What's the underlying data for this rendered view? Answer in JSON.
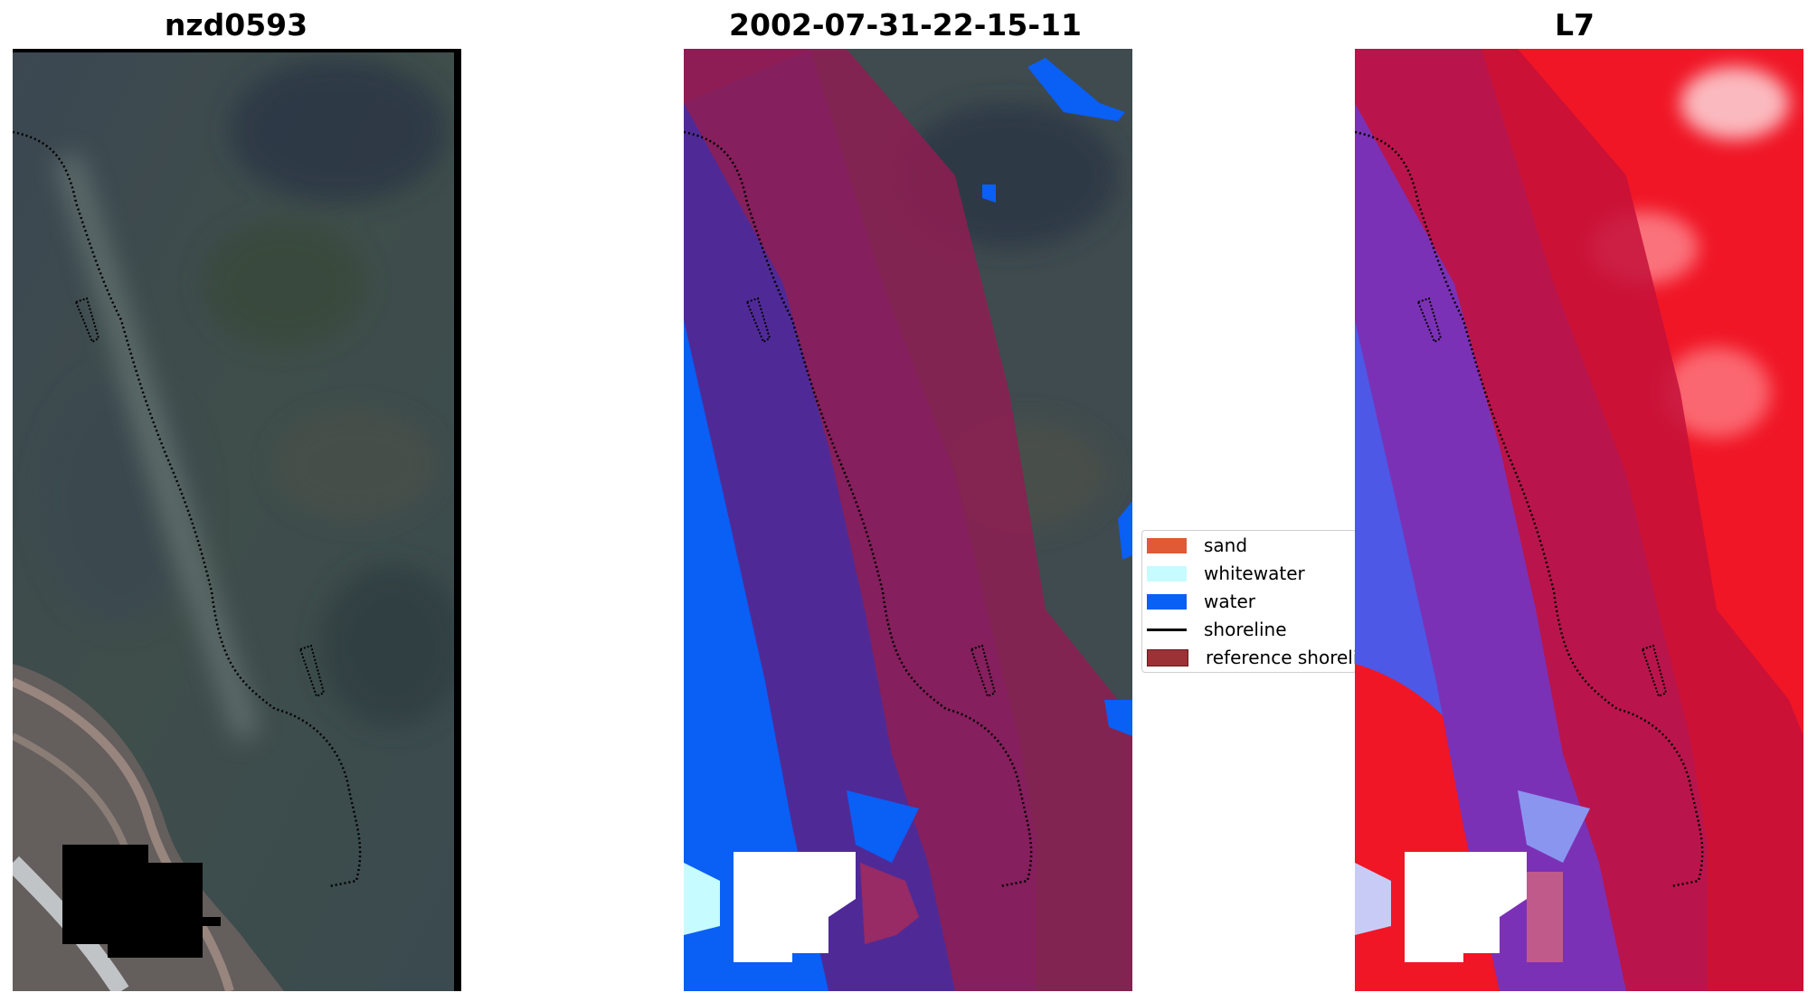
{
  "panels": [
    {
      "title": "nzd0593"
    },
    {
      "title": "2002-07-31-22-15-11"
    },
    {
      "title": "L7"
    }
  ],
  "legend": {
    "items": [
      {
        "label": "sand",
        "kind": "patch",
        "color": "#e05a35"
      },
      {
        "label": "whitewater",
        "kind": "patch",
        "color": "#c6fbff"
      },
      {
        "label": "water",
        "kind": "patch",
        "color": "#0a5ff5"
      },
      {
        "label": "shoreline",
        "kind": "line",
        "color": "#000000"
      },
      {
        "label": "reference shoreline",
        "kind": "patch",
        "color": "#9a3236"
      }
    ]
  },
  "colors": {
    "land_green": "#3e4b4c",
    "hill_brown": "#8a7c73",
    "mask_black": "#000000",
    "reference_buffer": "#8e1d52",
    "water_overlay": "#4f2a97",
    "water_class": "#0a5ff5",
    "whitewater_class": "#c6fbff",
    "index_red": "#f01626",
    "index_blue": "#4d58e6"
  }
}
